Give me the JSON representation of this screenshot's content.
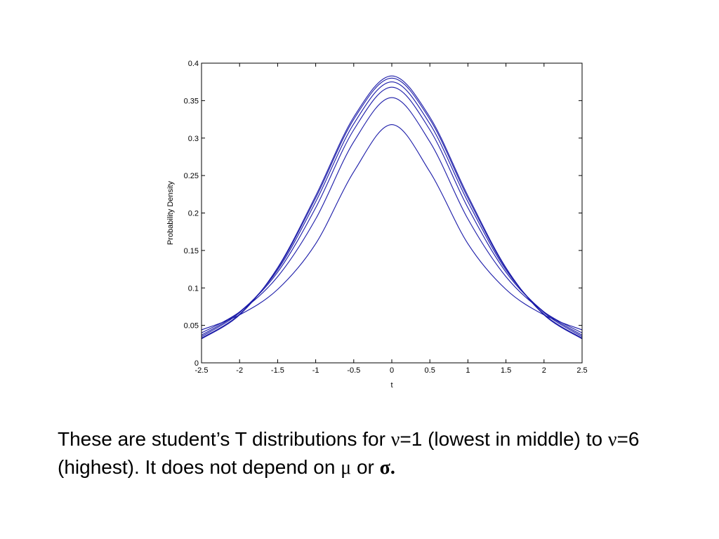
{
  "chart_data": {
    "type": "line",
    "xlabel": "t",
    "ylabel": "Probability Density",
    "xlim": [
      -2.5,
      2.5
    ],
    "ylim": [
      0,
      0.4
    ],
    "xticks": [
      -2.5,
      -2,
      -1.5,
      -1,
      -0.5,
      0,
      0.5,
      1,
      1.5,
      2,
      2.5
    ],
    "xtick_labels": [
      "-2.5",
      "-2",
      "-1.5",
      "-1",
      "-0.5",
      "0",
      "0.5",
      "1",
      "1.5",
      "2",
      "2.5"
    ],
    "yticks": [
      0,
      0.05,
      0.1,
      0.15,
      0.2,
      0.25,
      0.3,
      0.35,
      0.4
    ],
    "ytick_labels": [
      "0",
      "0.05",
      "0.1",
      "0.15",
      "0.2",
      "0.25",
      "0.3",
      "0.35",
      "0.4"
    ],
    "grid": false,
    "line_color": "#1a1aa8",
    "series": [
      {
        "x": [
          -2.5,
          -2,
          -1.5,
          -1,
          -0.5,
          0,
          0.5,
          1,
          1.5,
          2,
          2.5
        ],
        "y": [
          0.044,
          0.064,
          0.098,
          0.159,
          0.255,
          0.318,
          0.255,
          0.159,
          0.098,
          0.064,
          0.044
        ]
      },
      {
        "x": [
          -2.5,
          -2,
          -1.5,
          -1,
          -0.5,
          0,
          0.5,
          1,
          1.5,
          2,
          2.5
        ],
        "y": [
          0.04,
          0.068,
          0.115,
          0.192,
          0.295,
          0.354,
          0.295,
          0.192,
          0.115,
          0.068,
          0.04
        ]
      },
      {
        "x": [
          -2.5,
          -2,
          -1.5,
          -1,
          -0.5,
          0,
          0.5,
          1,
          1.5,
          2,
          2.5
        ],
        "y": [
          0.037,
          0.068,
          0.121,
          0.207,
          0.311,
          0.368,
          0.311,
          0.207,
          0.121,
          0.068,
          0.037
        ]
      },
      {
        "x": [
          -2.5,
          -2,
          -1.5,
          -1,
          -0.5,
          0,
          0.5,
          1,
          1.5,
          2,
          2.5
        ],
        "y": [
          0.035,
          0.067,
          0.124,
          0.215,
          0.319,
          0.375,
          0.319,
          0.215,
          0.124,
          0.067,
          0.035
        ]
      },
      {
        "x": [
          -2.5,
          -2,
          -1.5,
          -1,
          -0.5,
          0,
          0.5,
          1,
          1.5,
          2,
          2.5
        ],
        "y": [
          0.033,
          0.065,
          0.126,
          0.22,
          0.325,
          0.38,
          0.325,
          0.22,
          0.126,
          0.065,
          0.033
        ]
      },
      {
        "x": [
          -2.5,
          -2,
          -1.5,
          -1,
          -0.5,
          0,
          0.5,
          1,
          1.5,
          2,
          2.5
        ],
        "y": [
          0.032,
          0.064,
          0.127,
          0.223,
          0.328,
          0.383,
          0.328,
          0.223,
          0.127,
          0.064,
          0.032
        ]
      }
    ]
  },
  "caption": {
    "part1": "These are student’s T distributions for  ",
    "nu1": "ν",
    "part2": "=1 (lowest in middle) to ",
    "nu2": "ν",
    "part3": "=6 (highest).  It does not depend on ",
    "mu": "μ",
    "part4": " or ",
    "sigma": "σ",
    "part5": "."
  }
}
